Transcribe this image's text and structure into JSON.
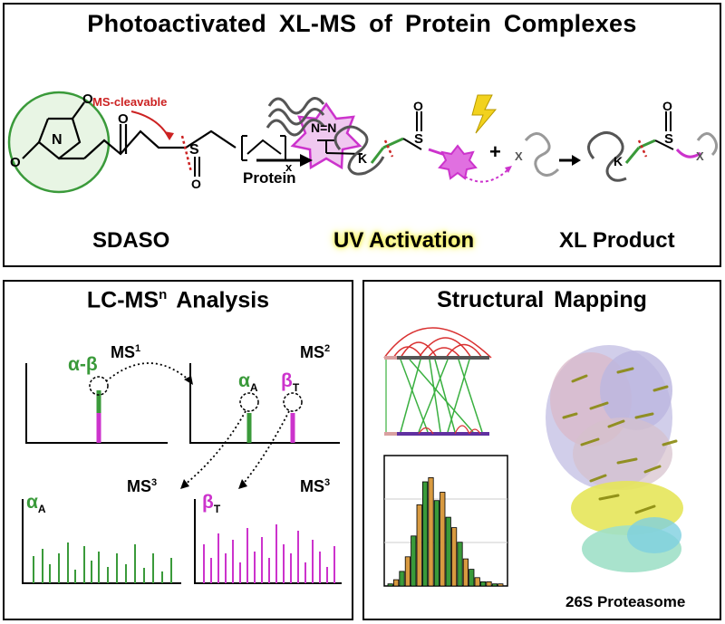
{
  "top": {
    "title": "Photoactivated  XL-MS  of  Protein Complexes",
    "ms_cleavable": "MS-cleavable",
    "protein": "Protein",
    "sdaso": "SDASO",
    "uv_activation": "UV Activation",
    "xl_product": "XL Product",
    "atoms": {
      "N": "N",
      "O": "O",
      "S": "S",
      "K": "K",
      "X": "X",
      "NN": "N=N",
      "x_sub": "x",
      "plus": "+"
    }
  },
  "lc": {
    "title_main": "LC-MS",
    "title_sup": "n",
    "title_rest": " Analysis",
    "ms1": "MS",
    "ms1_sup": "1",
    "ms2": "MS",
    "ms2_sup": "2",
    "ms3": "MS",
    "ms3_sup": "3",
    "alpha_beta": "α-β",
    "alpha": "α",
    "alpha_sub": "A",
    "beta": "β",
    "beta_sub": "T"
  },
  "sm": {
    "title": "Structural  Mapping",
    "proteasome": "26S Proteasome"
  },
  "colors": {
    "green": "#3a9a3a",
    "magenta": "#cc33cc",
    "red": "#cc2222",
    "yellow": "#f2d21e"
  },
  "chart_data": {
    "type": "bar",
    "title": "",
    "xlabel": "",
    "ylabel": "",
    "values": [
      1,
      3,
      7,
      14,
      24,
      39,
      50,
      52,
      41,
      45,
      33,
      28,
      21,
      13,
      8,
      4,
      2,
      2,
      1,
      1
    ],
    "ylim": [
      0,
      60
    ],
    "grid": true
  }
}
